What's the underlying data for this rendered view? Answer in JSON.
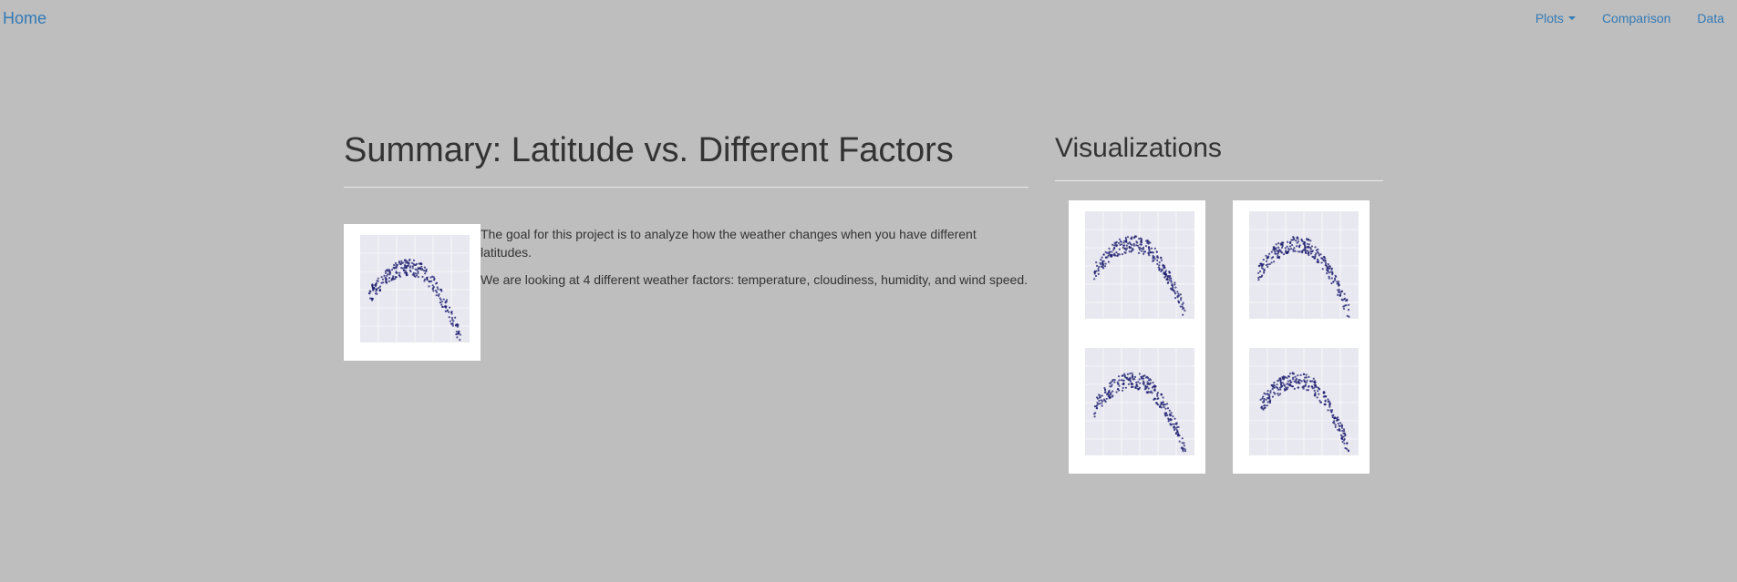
{
  "navbar": {
    "brand": "Home",
    "items": [
      {
        "label": "Plots",
        "has_caret": true
      },
      {
        "label": "Comparison"
      },
      {
        "label": "Data"
      }
    ]
  },
  "summary": {
    "title": "Summary: Latitude vs. Different Factors",
    "paragraphs": [
      "The goal for this project is to analyze how the weather changes when you have different latitudes.",
      "We are looking at 4 different weather factors: temperature, cloudiness, humidity, and wind speed."
    ]
  },
  "visualizations": {
    "title": "Visualizations"
  },
  "colors": {
    "background": "#bebebe",
    "link": "#337ab7",
    "plot_points": "#1a1a6e",
    "plot_bg": "#e8e8f0"
  }
}
